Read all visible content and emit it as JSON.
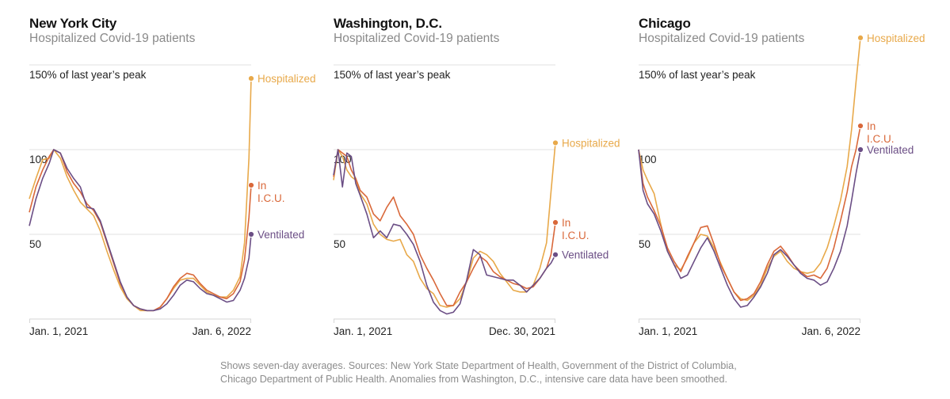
{
  "note": "Shows seven-day averages. Sources: New York State Department of Health, Government of the District of Columbia, Chicago Department of Public Health. Anomalies from Washington, D.C., intensive care data have been smoothed.",
  "colors": {
    "hospitalized": "#e8a94a",
    "icu": "#d9683a",
    "ventilated": "#6b4e85",
    "grid": "#e2e2e2",
    "axis": "#d6d6d6"
  },
  "chart_data": [
    {
      "type": "line",
      "title": "New York City",
      "subtitle": "Hospitalized Covid-19 patients",
      "xlabel": "",
      "ylabel": "",
      "x_ticks": [
        "Jan. 1, 2021",
        "Jan. 6, 2022"
      ],
      "y_ticks": [
        {
          "value": 50,
          "label": "50"
        },
        {
          "value": 100,
          "label": "100"
        },
        {
          "value": 150,
          "label": "150% of last year’s peak"
        }
      ],
      "ylim": [
        0,
        150
      ],
      "grid": true,
      "legend": "end-of-line labels",
      "x": [
        0,
        0.03,
        0.06,
        0.09,
        0.11,
        0.14,
        0.17,
        0.2,
        0.23,
        0.26,
        0.29,
        0.32,
        0.35,
        0.38,
        0.41,
        0.44,
        0.47,
        0.5,
        0.53,
        0.56,
        0.59,
        0.62,
        0.65,
        0.68,
        0.71,
        0.74,
        0.77,
        0.8,
        0.83,
        0.86,
        0.89,
        0.92,
        0.95,
        0.97,
        0.99,
        1.0
      ],
      "series": [
        {
          "name": "Hospitalized",
          "label": "Hospitalized",
          "end_value": 142,
          "values": [
            71,
            83,
            94,
            95,
            100,
            95,
            84,
            76,
            69,
            65,
            61,
            52,
            40,
            29,
            19,
            12,
            8,
            5,
            5,
            5,
            7,
            12,
            18,
            23,
            24,
            24,
            20,
            16,
            14,
            13,
            13,
            17,
            25,
            45,
            95,
            142
          ]
        },
        {
          "name": "In I.C.U.",
          "label": "In\nI.C.U.",
          "end_value": 79,
          "values": [
            63,
            78,
            88,
            96,
            100,
            98,
            87,
            80,
            75,
            68,
            64,
            57,
            45,
            33,
            21,
            13,
            8,
            6,
            5,
            5,
            7,
            12,
            19,
            24,
            27,
            26,
            21,
            17,
            15,
            13,
            12,
            15,
            22,
            35,
            60,
            79
          ]
        },
        {
          "name": "Ventilated",
          "label": "Ventilated",
          "end_value": 50,
          "values": [
            55,
            71,
            83,
            92,
            100,
            98,
            89,
            83,
            78,
            66,
            65,
            58,
            46,
            34,
            22,
            13,
            8,
            6,
            5,
            5,
            6,
            9,
            14,
            20,
            23,
            22,
            18,
            15,
            14,
            12,
            10,
            11,
            17,
            24,
            36,
            50
          ]
        }
      ]
    },
    {
      "type": "line",
      "title": "Washington, D.C.",
      "subtitle": "Hospitalized Covid-19 patients",
      "xlabel": "",
      "ylabel": "",
      "x_ticks": [
        "Jan. 1, 2021",
        "Dec. 30, 2021"
      ],
      "y_ticks": [
        {
          "value": 50,
          "label": "50"
        },
        {
          "value": 100,
          "label": "100"
        },
        {
          "value": 150,
          "label": "150% of last year’s peak"
        }
      ],
      "ylim": [
        0,
        150
      ],
      "grid": true,
      "legend": "end-of-line labels",
      "x": [
        0,
        0.02,
        0.04,
        0.06,
        0.08,
        0.1,
        0.12,
        0.15,
        0.18,
        0.21,
        0.24,
        0.27,
        0.3,
        0.33,
        0.36,
        0.39,
        0.42,
        0.45,
        0.48,
        0.51,
        0.54,
        0.57,
        0.6,
        0.63,
        0.66,
        0.69,
        0.72,
        0.75,
        0.78,
        0.81,
        0.84,
        0.87,
        0.9,
        0.93,
        0.96,
        0.98,
        1.0
      ],
      "series": [
        {
          "name": "Hospitalized",
          "label": "Hospitalized",
          "end_value": 104,
          "values": [
            82,
            100,
            96,
            88,
            84,
            82,
            74,
            68,
            56,
            50,
            47,
            46,
            47,
            38,
            34,
            24,
            18,
            15,
            8,
            7,
            8,
            12,
            22,
            36,
            40,
            38,
            34,
            27,
            22,
            17,
            16,
            16,
            20,
            30,
            45,
            75,
            104
          ]
        },
        {
          "name": "In I.C.U.",
          "label": "In\nI.C.U.",
          "end_value": 57,
          "values": [
            84,
            100,
            98,
            96,
            88,
            83,
            76,
            72,
            62,
            58,
            66,
            72,
            61,
            56,
            50,
            38,
            30,
            23,
            15,
            8,
            8,
            16,
            22,
            30,
            37,
            34,
            28,
            25,
            23,
            21,
            20,
            18,
            19,
            24,
            30,
            38,
            57
          ]
        },
        {
          "name": "Ventilated",
          "label": "Ventilated",
          "end_value": 38,
          "values": [
            85,
            100,
            78,
            98,
            96,
            80,
            73,
            62,
            48,
            52,
            48,
            56,
            55,
            50,
            44,
            34,
            20,
            10,
            5,
            3,
            4,
            9,
            23,
            41,
            38,
            26,
            25,
            24,
            23,
            23,
            20,
            16,
            20,
            24,
            30,
            33,
            38
          ]
        }
      ]
    },
    {
      "type": "line",
      "title": "Chicago",
      "subtitle": "Hospitalized Covid-19 patients",
      "xlabel": "",
      "ylabel": "",
      "x_ticks": [
        "Jan. 1, 2021",
        "Jan. 6, 2022"
      ],
      "y_ticks": [
        {
          "value": 50,
          "label": "50"
        },
        {
          "value": 100,
          "label": "100"
        },
        {
          "value": 150,
          "label": "150% of last year’s peak"
        }
      ],
      "ylim": [
        0,
        150
      ],
      "grid": true,
      "legend": "end-of-line labels",
      "x": [
        0,
        0.02,
        0.04,
        0.07,
        0.1,
        0.13,
        0.16,
        0.19,
        0.22,
        0.25,
        0.28,
        0.31,
        0.34,
        0.37,
        0.4,
        0.43,
        0.46,
        0.49,
        0.52,
        0.55,
        0.58,
        0.61,
        0.64,
        0.67,
        0.7,
        0.73,
        0.76,
        0.79,
        0.82,
        0.85,
        0.88,
        0.91,
        0.94,
        0.96,
        0.98,
        1.0
      ],
      "series": [
        {
          "name": "Hospitalized",
          "label": "Hospitalized",
          "end_value": 166,
          "values": [
            100,
            88,
            82,
            74,
            56,
            40,
            32,
            29,
            36,
            45,
            50,
            49,
            42,
            33,
            24,
            16,
            12,
            11,
            14,
            20,
            30,
            37,
            40,
            34,
            30,
            28,
            27,
            28,
            33,
            42,
            55,
            70,
            90,
            112,
            140,
            166
          ]
        },
        {
          "name": "In I.C.U.",
          "label": "In\nI.C.U.",
          "end_value": 114,
          "values": [
            100,
            80,
            72,
            64,
            55,
            42,
            34,
            28,
            37,
            45,
            54,
            55,
            44,
            32,
            24,
            16,
            11,
            12,
            15,
            22,
            32,
            40,
            43,
            38,
            32,
            28,
            25,
            26,
            24,
            30,
            42,
            58,
            75,
            90,
            100,
            114
          ]
        },
        {
          "name": "Ventilated",
          "label": "Ventilated",
          "end_value": 100,
          "values": [
            100,
            76,
            68,
            62,
            52,
            40,
            32,
            24,
            26,
            34,
            42,
            48,
            40,
            30,
            20,
            12,
            7,
            8,
            13,
            19,
            27,
            38,
            41,
            37,
            32,
            27,
            24,
            23,
            20,
            22,
            30,
            40,
            55,
            70,
            86,
            100
          ]
        }
      ]
    }
  ]
}
